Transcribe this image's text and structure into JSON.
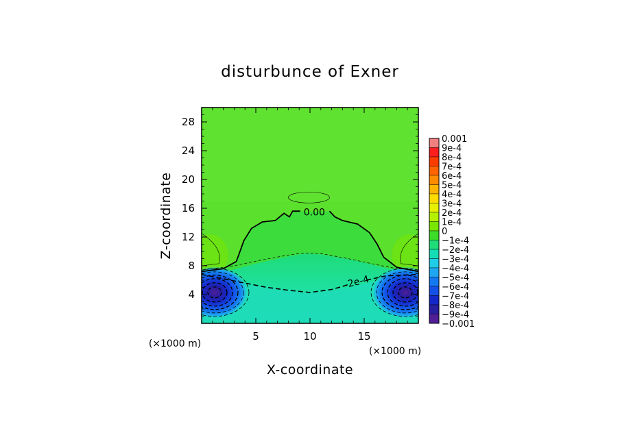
{
  "chart_data": {
    "type": "heatmap",
    "title": "disturbunce of Exner",
    "xlabel": "X-coordinate",
    "ylabel": "Z-coordinate",
    "x_unit": "(×1000 m)",
    "x_unit_right": "(×1000 m)",
    "xlim": [
      0,
      20
    ],
    "ylim": [
      0,
      30
    ],
    "x_ticks": [
      "5",
      "10",
      "15"
    ],
    "x_tick_values": [
      5,
      10,
      15
    ],
    "y_ticks": [
      "4",
      "8",
      "12",
      "16",
      "20",
      "24",
      "28"
    ],
    "y_tick_values": [
      4,
      8,
      12,
      16,
      20,
      24,
      28
    ],
    "colorbar_labels": [
      "0.001",
      "9e-4",
      "8e-4",
      "7e-4",
      "6e-4",
      "5e-4",
      "4e-4",
      "3e-4",
      "2e-4",
      "1e-4",
      "0",
      "−1e-4",
      "−2e-4",
      "−3e-4",
      "−4e-4",
      "−5e-4",
      "−6e-4",
      "−7e-4",
      "−8e-4",
      "−9e-4",
      "−0.001"
    ],
    "colorbar_colors": [
      "#f08080",
      "#ff1e1e",
      "#ff3c00",
      "#ff6400",
      "#ff8c00",
      "#ffb400",
      "#ffdc00",
      "#e6f000",
      "#b4f000",
      "#78e600",
      "#3cdc28",
      "#1edc78",
      "#14dcb4",
      "#1ecce6",
      "#1ea6f0",
      "#1478f0",
      "#1450e6",
      "#1428c8",
      "#281ea0",
      "#501e96"
    ],
    "contour_labels": [
      "0.00",
      "-2e-4"
    ],
    "features": {
      "background_level": "0 to 1e-4",
      "lower_layer_level": "-1e-4 to -2e-4",
      "min_centers": [
        {
          "x": 1.2,
          "z": 4.3,
          "value": "-0.001"
        },
        {
          "x": 18.8,
          "z": 4.3,
          "value": "-0.001"
        }
      ],
      "zero_contour_label_position": {
        "x": 10.4,
        "z": 15.5
      },
      "neg2e4_contour_label_position": {
        "x": 14.3,
        "z": 5.8
      }
    }
  }
}
